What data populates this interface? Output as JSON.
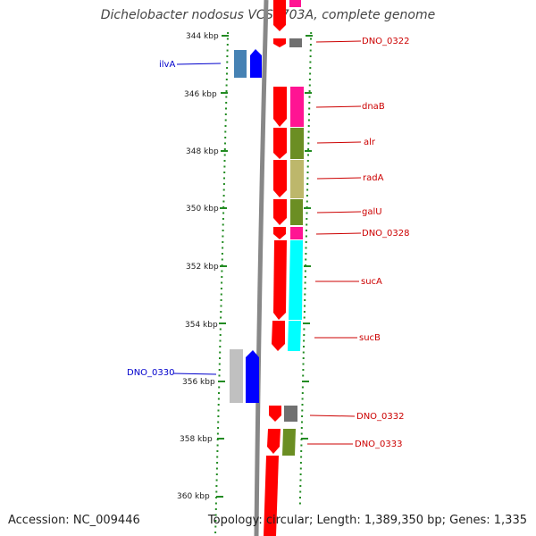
{
  "title": "Dichelobacter nodosus VCS1703A, complete genome",
  "footer": {
    "accession": "Accession: NC_009446",
    "stats": "Topology: circular; Length: 1,389,350 bp; Genes: 1,335"
  },
  "colors": {
    "backbone": "#888888",
    "ticks": "#228b22",
    "forward_label": "#0000cc",
    "reverse_label": "#cc0000"
  },
  "kbp_labels": [
    "344 kbp",
    "346 kbp",
    "348 kbp",
    "350 kbp",
    "352 kbp",
    "354 kbp",
    "356 kbp",
    "358 kbp",
    "360 kbp"
  ],
  "genes": [
    {
      "label": "",
      "strand": "reverse",
      "color": "#ff0000",
      "cog": "#ff1493"
    },
    {
      "label": "DNO_0322",
      "strand": "reverse",
      "color": "#ff0000",
      "cog": "#707070"
    },
    {
      "label": "ilvA",
      "strand": "forward",
      "color": "#0000ff",
      "cog": "#4682b4"
    },
    {
      "label": "dnaB",
      "strand": "reverse",
      "color": "#ff0000",
      "cog": "#ff1493"
    },
    {
      "label": "alr",
      "strand": "reverse",
      "color": "#ff0000",
      "cog": "#6b8e23"
    },
    {
      "label": "radA",
      "strand": "reverse",
      "color": "#ff0000",
      "cog": "#bdb76b"
    },
    {
      "label": "galU",
      "strand": "reverse",
      "color": "#ff0000",
      "cog": "#6b8e23"
    },
    {
      "label": "DNO_0328",
      "strand": "reverse",
      "color": "#ff0000",
      "cog": "#ff1493"
    },
    {
      "label": "sucA",
      "strand": "reverse",
      "color": "#ff0000",
      "cog": "#00ffff"
    },
    {
      "label": "sucB",
      "strand": "reverse",
      "color": "#ff0000",
      "cog": "#00ffff"
    },
    {
      "label": "DNO_0330",
      "strand": "forward",
      "color": "#0000ff",
      "cog": "#c0c0c0"
    },
    {
      "label": "DNO_0332",
      "strand": "reverse",
      "color": "#ff0000",
      "cog": "#707070"
    },
    {
      "label": "DNO_0333",
      "strand": "reverse",
      "color": "#ff0000",
      "cog": "#6b8e23"
    },
    {
      "label": "",
      "strand": "reverse",
      "color": "#ff0000",
      "cog": ""
    }
  ]
}
